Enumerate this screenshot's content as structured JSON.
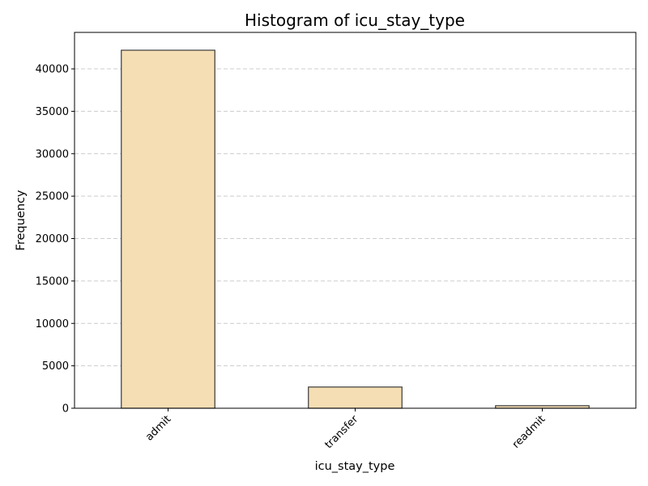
{
  "chart_data": {
    "type": "bar",
    "title": "Histogram of icu_stay_type",
    "xlabel": "icu_stay_type",
    "ylabel": "Frequency",
    "categories": [
      "admit",
      "transfer",
      "readmit"
    ],
    "values": [
      42200,
      2500,
      300
    ],
    "ylim": [
      0,
      44300
    ],
    "yticks": [
      0,
      5000,
      10000,
      15000,
      20000,
      25000,
      30000,
      35000,
      40000
    ],
    "ytick_labels": [
      "0",
      "5000",
      "10000",
      "15000",
      "20000",
      "25000",
      "30000",
      "35000",
      "40000"
    ],
    "grid": "y-dashed",
    "colors": {
      "bar_fill": "#f5deb3",
      "bar_edge": "#3a3a3a",
      "grid": "#cccccc",
      "axis": "#000000"
    }
  }
}
